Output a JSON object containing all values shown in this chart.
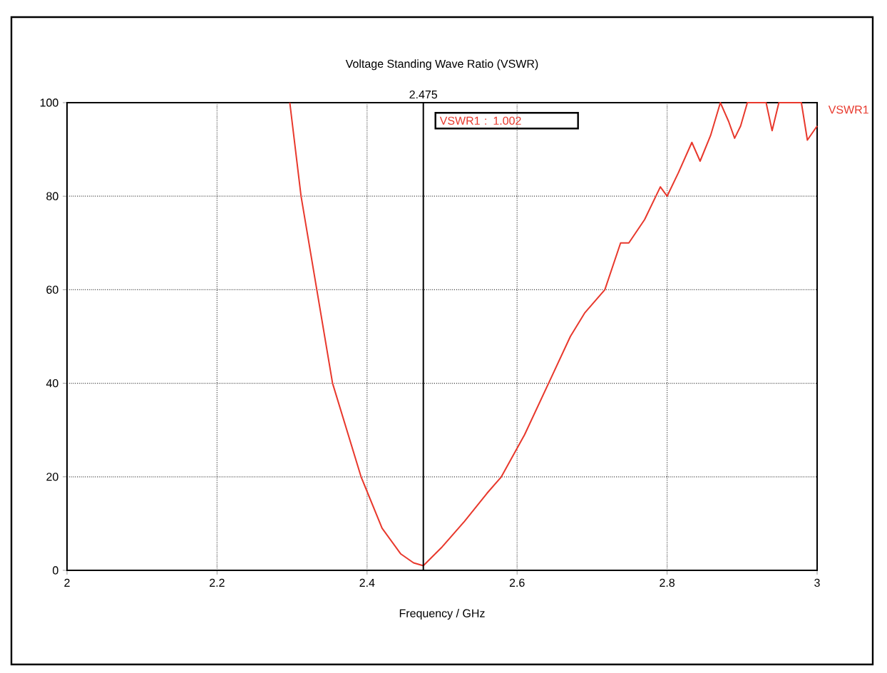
{
  "chart_data": {
    "type": "line",
    "title": "Voltage Standing Wave Ratio (VSWR)",
    "xlabel": "Frequency / GHz",
    "xlim": [
      2,
      3
    ],
    "ylim": [
      0,
      100
    ],
    "xticks": [
      2,
      2.2,
      2.4,
      2.6,
      2.8,
      3
    ],
    "yticks": [
      0,
      20,
      40,
      60,
      80,
      100
    ],
    "grid": true,
    "marker": "none",
    "line_style": "solid",
    "ref_lines": [
      {
        "axis": "x",
        "value": 2.475,
        "label": "2.475",
        "color": "#000000"
      }
    ],
    "annotations": [
      "VSWR1 : 1.002"
    ],
    "series": [
      {
        "name": "VSWR1",
        "color": "#e8382c",
        "x": [
          2.297,
          2.312,
          2.333,
          2.354,
          2.392,
          2.42,
          2.445,
          2.462,
          2.475,
          2.5,
          2.53,
          2.56,
          2.579,
          2.61,
          2.642,
          2.671,
          2.69,
          2.717,
          2.738,
          2.749,
          2.77,
          2.791,
          2.8,
          2.815,
          2.833,
          2.844,
          2.858,
          2.871,
          2.882,
          2.89,
          2.898,
          2.907,
          2.92,
          2.932,
          2.94,
          2.949,
          2.965,
          2.979,
          2.987,
          3.0
        ],
        "values": [
          100,
          80,
          60,
          40,
          20,
          9,
          3.5,
          1.6,
          1.002,
          5,
          10.5,
          16.5,
          20,
          29,
          40,
          50,
          55,
          60,
          70,
          70,
          75,
          82,
          80,
          85,
          91.5,
          87.5,
          93,
          100,
          96,
          92.4,
          95,
          100,
          100,
          100,
          94,
          100,
          100,
          100,
          92,
          95
        ]
      }
    ]
  }
}
